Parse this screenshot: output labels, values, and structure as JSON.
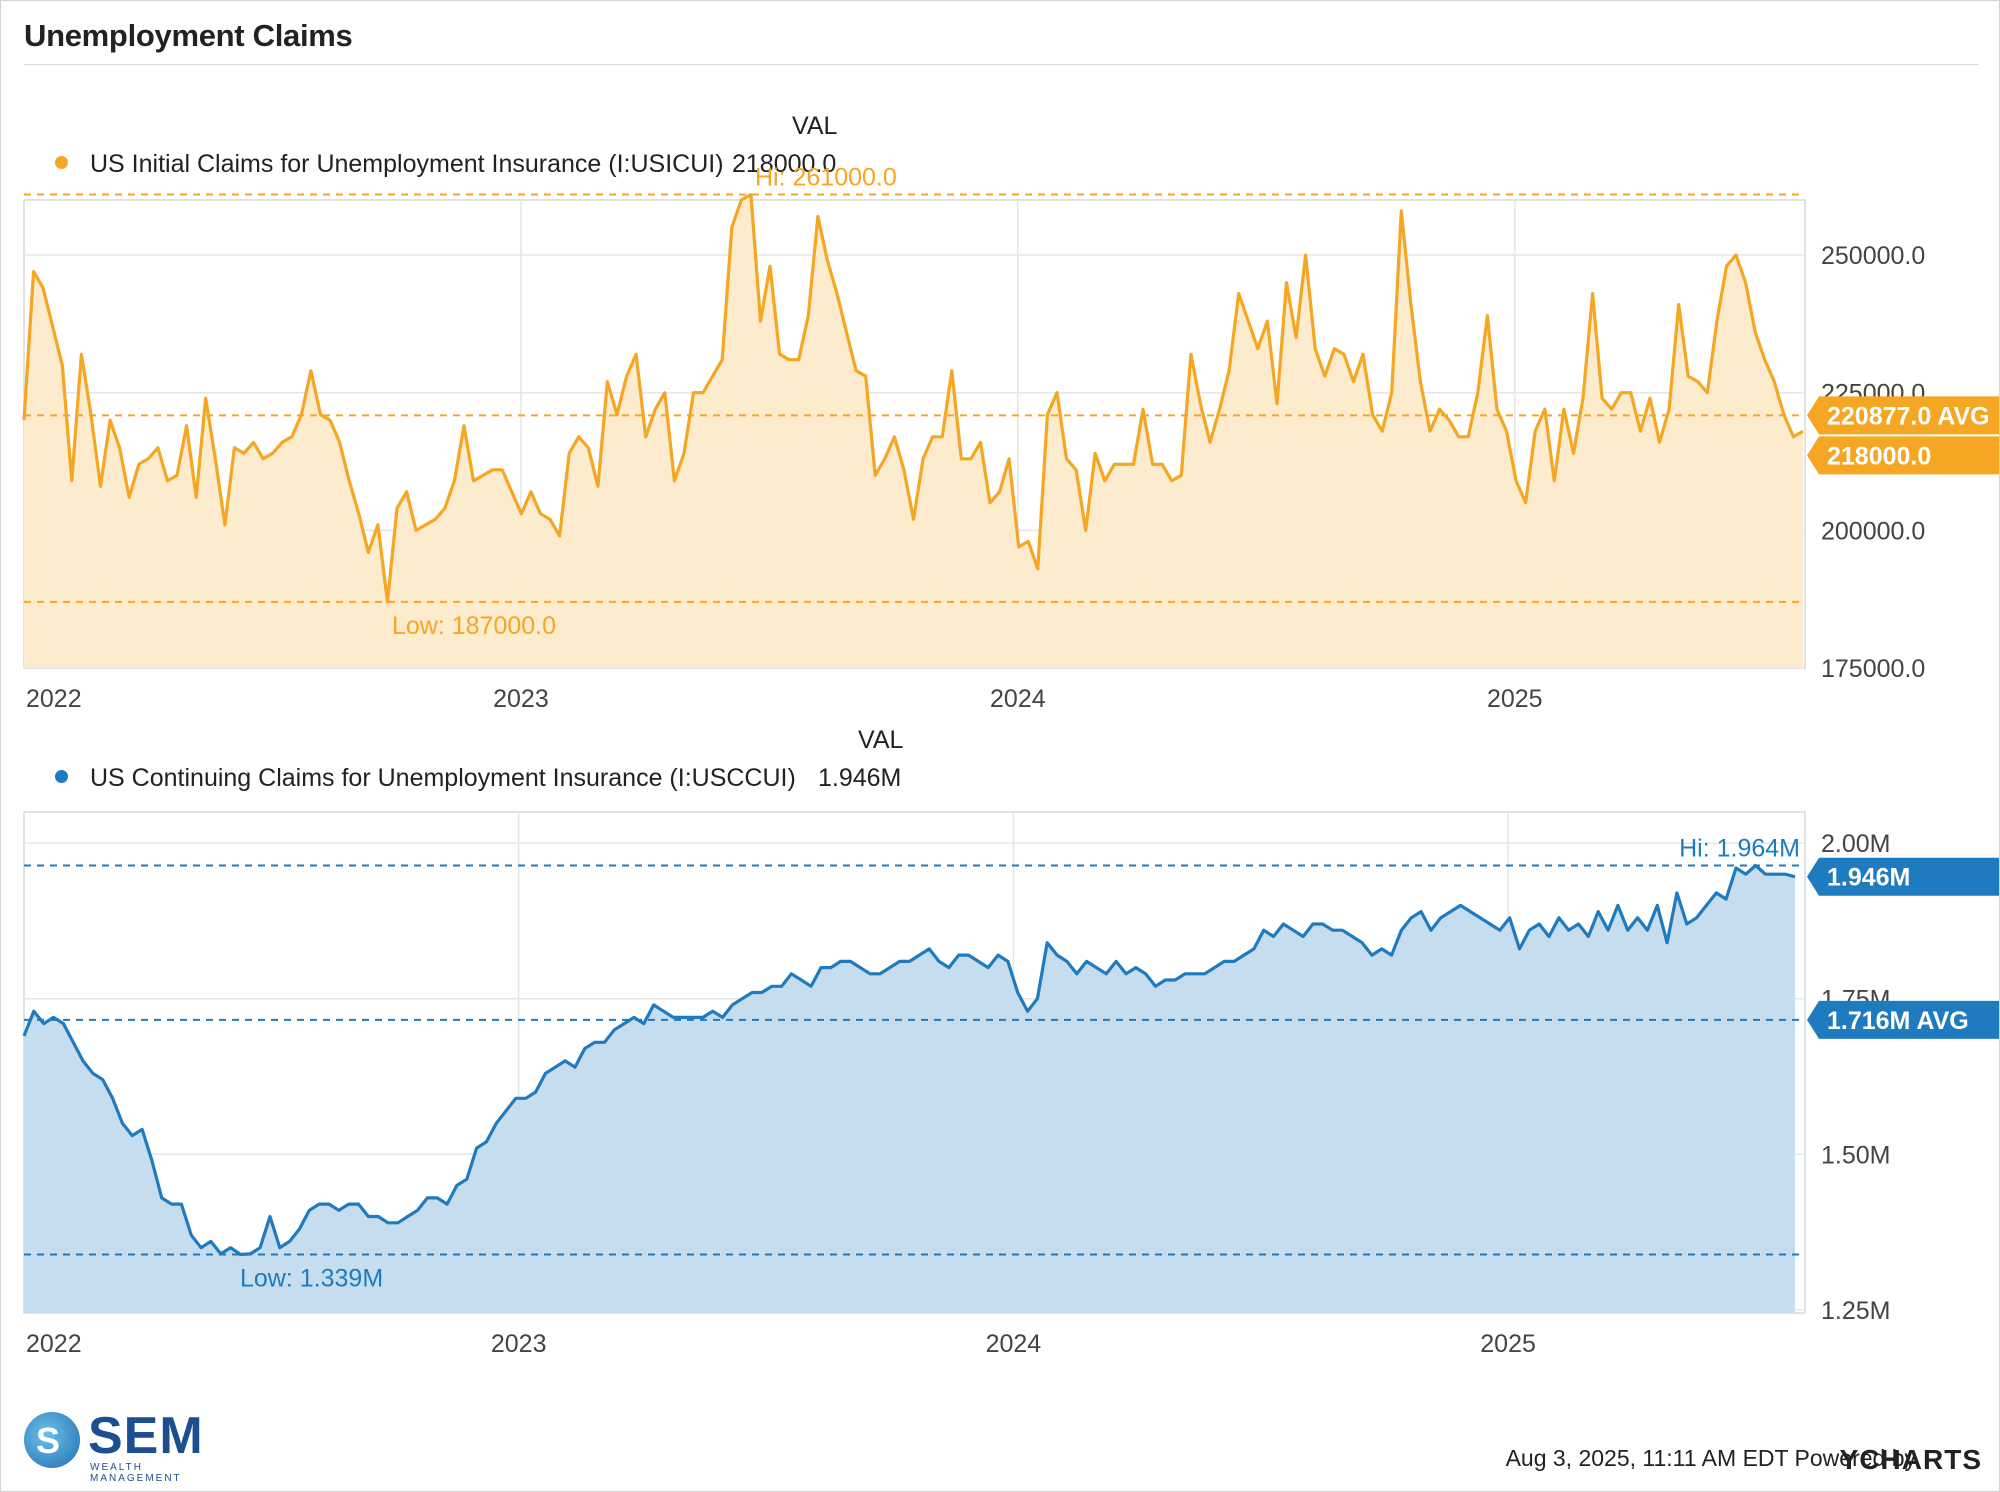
{
  "title": "Unemployment Claims",
  "footer": {
    "timestamp": "Aug 3, 2025, 11:11 AM EDT Powered by",
    "brand": "YCHARTS"
  },
  "logo": {
    "word": "SEM",
    "sub": "WEALTH MANAGEMENT",
    "glyph": "S"
  },
  "colors": {
    "initial": "#f5a623",
    "initial_fill": "#fdebcd",
    "continuing": "#1f7bbf",
    "continuing_fill": "#c6dcef"
  },
  "chart_data": [
    {
      "type": "area",
      "val_header": "VAL",
      "series_name": "US Initial Claims for Unemployment Insurance (I:USICUI)",
      "current_value_text": "218000.0",
      "current": 218000,
      "avg": 220877,
      "avg_label": "220877.0 AVG",
      "current_label": "218000.0",
      "hi": 261000,
      "hi_label": "Hi: 261000.0",
      "lo": 187000,
      "lo_label": "Low: 187000.0",
      "ylim": [
        175000,
        260000
      ],
      "yticks": [
        175000,
        200000,
        225000,
        250000
      ],
      "ytick_labels": [
        "175000.0",
        "200000.0",
        "225000.0",
        "250000.0"
      ],
      "x_start": 2022.0,
      "x_end": 2025.58,
      "xticks": [
        2022,
        2023,
        2024,
        2025
      ],
      "xtick_labels": [
        "2022",
        "2023",
        "2024",
        "2025"
      ],
      "values": [
        220000,
        247000,
        244000,
        237000,
        230000,
        209000,
        232000,
        221000,
        208000,
        220000,
        215000,
        206000,
        212000,
        213000,
        215000,
        209000,
        210000,
        219000,
        206000,
        224000,
        213000,
        201000,
        215000,
        214000,
        216000,
        213000,
        214000,
        216000,
        217000,
        221000,
        229000,
        221000,
        220000,
        216000,
        209000,
        203000,
        196000,
        201000,
        187000,
        204000,
        207000,
        200000,
        201000,
        202000,
        204000,
        209000,
        219000,
        209000,
        210000,
        211000,
        211000,
        207000,
        203000,
        207000,
        203000,
        202000,
        199000,
        214000,
        217000,
        215000,
        208000,
        227000,
        221000,
        228000,
        232000,
        217000,
        222000,
        225000,
        209000,
        214000,
        225000,
        225000,
        228000,
        231000,
        255000,
        260000,
        261000,
        238000,
        248000,
        232000,
        231000,
        231000,
        239000,
        257000,
        249000,
        243000,
        236000,
        229000,
        228000,
        210000,
        213000,
        217000,
        211000,
        202000,
        213000,
        217000,
        217000,
        229000,
        213000,
        213000,
        216000,
        205000,
        207000,
        213000,
        197000,
        198000,
        193000,
        221000,
        225000,
        213000,
        211000,
        200000,
        214000,
        209000,
        212000,
        212000,
        212000,
        222000,
        212000,
        212000,
        209000,
        210000,
        232000,
        223000,
        216000,
        222000,
        229000,
        243000,
        238000,
        233000,
        238000,
        223000,
        245000,
        235000,
        250000,
        233000,
        228000,
        233000,
        232000,
        227000,
        232000,
        221000,
        218000,
        225000,
        258000,
        241000,
        227000,
        218000,
        222000,
        220000,
        217000,
        217000,
        225000,
        239000,
        222000,
        218000,
        209000,
        205000,
        218000,
        222000,
        209000,
        222000,
        214000,
        224000,
        243000,
        224000,
        222000,
        225000,
        225000,
        218000,
        224000,
        216000,
        222000,
        241000,
        228000,
        227000,
        225000,
        238000,
        248000,
        250000,
        245000,
        236000,
        231000,
        227000,
        221000,
        217000,
        218000
      ]
    },
    {
      "type": "area",
      "val_header": "VAL",
      "series_name": "US Continuing Claims for Unemployment Insurance (I:USCCUI)",
      "current_value_text": "1.946M",
      "current": 1.946,
      "avg": 1.716,
      "avg_label": "1.716M AVG",
      "current_label": "1.946M",
      "hi": 1.964,
      "hi_label": "Hi: 1.964M",
      "lo": 1.339,
      "lo_label": "Low: 1.339M",
      "ylim": [
        1.245,
        2.05
      ],
      "yticks": [
        1.25,
        1.5,
        1.75,
        2.0
      ],
      "ytick_labels": [
        "1.25M",
        "1.50M",
        "1.75M",
        "2.00M"
      ],
      "x_start": 2022.0,
      "x_end": 2025.58,
      "xticks": [
        2022,
        2023,
        2024,
        2025
      ],
      "xtick_labels": [
        "2022",
        "2023",
        "2024",
        "2025"
      ],
      "values": [
        1.69,
        1.73,
        1.71,
        1.72,
        1.71,
        1.68,
        1.65,
        1.63,
        1.62,
        1.59,
        1.55,
        1.53,
        1.54,
        1.49,
        1.43,
        1.42,
        1.42,
        1.37,
        1.35,
        1.36,
        1.34,
        1.35,
        1.339,
        1.34,
        1.35,
        1.4,
        1.35,
        1.36,
        1.38,
        1.41,
        1.42,
        1.42,
        1.41,
        1.42,
        1.42,
        1.4,
        1.4,
        1.39,
        1.39,
        1.4,
        1.41,
        1.43,
        1.43,
        1.42,
        1.45,
        1.46,
        1.51,
        1.52,
        1.55,
        1.57,
        1.59,
        1.59,
        1.6,
        1.63,
        1.64,
        1.65,
        1.64,
        1.67,
        1.68,
        1.68,
        1.7,
        1.71,
        1.72,
        1.71,
        1.74,
        1.73,
        1.72,
        1.72,
        1.72,
        1.72,
        1.73,
        1.72,
        1.74,
        1.75,
        1.76,
        1.76,
        1.77,
        1.77,
        1.79,
        1.78,
        1.77,
        1.8,
        1.8,
        1.81,
        1.81,
        1.8,
        1.79,
        1.79,
        1.8,
        1.81,
        1.81,
        1.82,
        1.83,
        1.81,
        1.8,
        1.82,
        1.82,
        1.81,
        1.8,
        1.82,
        1.81,
        1.76,
        1.73,
        1.75,
        1.84,
        1.82,
        1.81,
        1.79,
        1.81,
        1.8,
        1.79,
        1.81,
        1.79,
        1.8,
        1.79,
        1.77,
        1.78,
        1.78,
        1.79,
        1.79,
        1.79,
        1.8,
        1.81,
        1.81,
        1.82,
        1.83,
        1.86,
        1.85,
        1.87,
        1.86,
        1.85,
        1.87,
        1.87,
        1.86,
        1.86,
        1.85,
        1.84,
        1.82,
        1.83,
        1.82,
        1.86,
        1.88,
        1.89,
        1.86,
        1.88,
        1.89,
        1.9,
        1.89,
        1.88,
        1.87,
        1.86,
        1.88,
        1.83,
        1.86,
        1.87,
        1.85,
        1.88,
        1.86,
        1.87,
        1.85,
        1.89,
        1.86,
        1.9,
        1.86,
        1.88,
        1.86,
        1.9,
        1.84,
        1.92,
        1.87,
        1.88,
        1.9,
        1.92,
        1.91,
        1.96,
        1.95,
        1.964,
        1.95,
        1.95,
        1.95,
        1.946
      ]
    }
  ]
}
